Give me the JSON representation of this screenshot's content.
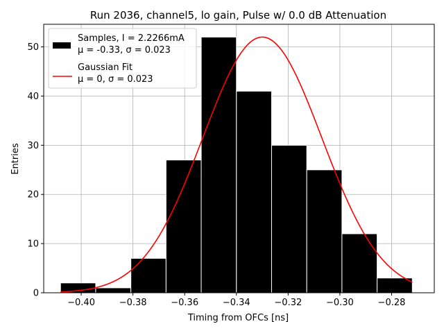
{
  "chart_data": {
    "type": "bar",
    "title": "Run 2036, channel5, lo gain, Pulse w/ 0.0 dB Attenuation",
    "xlabel": "Timing from OFCs [ns]",
    "ylabel": "Entries",
    "xlim": [
      -0.4145,
      -0.2635
    ],
    "ylim": [
      0,
      54.6
    ],
    "grid": true,
    "legend_position": "top-left",
    "x_ticks": [
      -0.4,
      -0.38,
      -0.36,
      -0.34,
      -0.32,
      -0.3,
      -0.28
    ],
    "x_tick_labels": [
      "−0.40",
      "−0.38",
      "−0.36",
      "−0.34",
      "−0.32",
      "−0.30",
      "−0.28"
    ],
    "y_ticks": [
      0,
      10,
      20,
      30,
      40,
      50
    ],
    "y_tick_labels": [
      "0",
      "10",
      "20",
      "30",
      "40",
      "50"
    ],
    "histogram": {
      "bin_edges": [
        -0.408,
        -0.3944,
        -0.3808,
        -0.3672,
        -0.3536,
        -0.34,
        -0.3264,
        -0.3128,
        -0.2992,
        -0.2856,
        -0.272
      ],
      "counts": [
        2,
        1,
        7,
        27,
        52,
        41,
        30,
        25,
        12,
        3
      ],
      "color": "#000000",
      "edgecolor": "#ffffff"
    },
    "fit_curve": {
      "amplitude": 52,
      "mean": -0.33,
      "sigma": 0.023,
      "x_range": [
        -0.408,
        -0.272
      ],
      "color": "#ff0000"
    },
    "legend": [
      {
        "line1": "Samples, I = 2.2266mA",
        "line2": "μ = -0.33, σ = 0.023",
        "swatch": "bar",
        "color": "#000000"
      },
      {
        "line1": "Gaussian Fit",
        "line2": "μ = 0, σ = 0.023",
        "swatch": "line",
        "color": "#ff0000"
      }
    ]
  }
}
